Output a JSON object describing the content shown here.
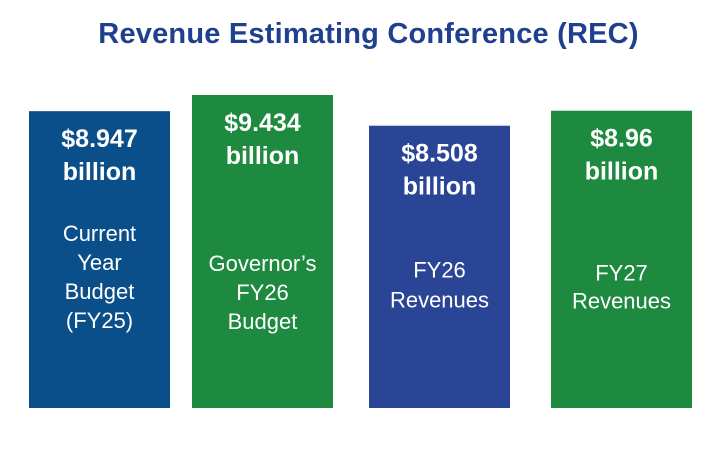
{
  "title": "Revenue Estimating Conference (REC)",
  "chart_data": {
    "type": "bar",
    "title": "Revenue Estimating Conference (REC)",
    "unit": "billion",
    "ylim": [
      0,
      9.434
    ],
    "bars": [
      {
        "value_text": "$8.947",
        "unit_text": "billion",
        "value": 8.947,
        "label_lines": [
          "Current",
          "Year",
          "Budget",
          "(FY25)"
        ],
        "color": "#0b4f8a"
      },
      {
        "value_text": "$9.434",
        "unit_text": "billion",
        "value": 9.434,
        "label_lines": [
          "Governor’s",
          "FY26",
          "Budget"
        ],
        "color": "#1e8a3f"
      },
      {
        "value_text": "$8.508",
        "unit_text": "billion",
        "value": 8.508,
        "label_lines": [
          "FY26",
          "Revenues"
        ],
        "color": "#2b4596"
      },
      {
        "value_text": "$8.96",
        "unit_text": "billion",
        "value": 8.96,
        "label_lines": [
          "FY27",
          "Revenues"
        ],
        "color": "#1e8a3f"
      }
    ]
  }
}
